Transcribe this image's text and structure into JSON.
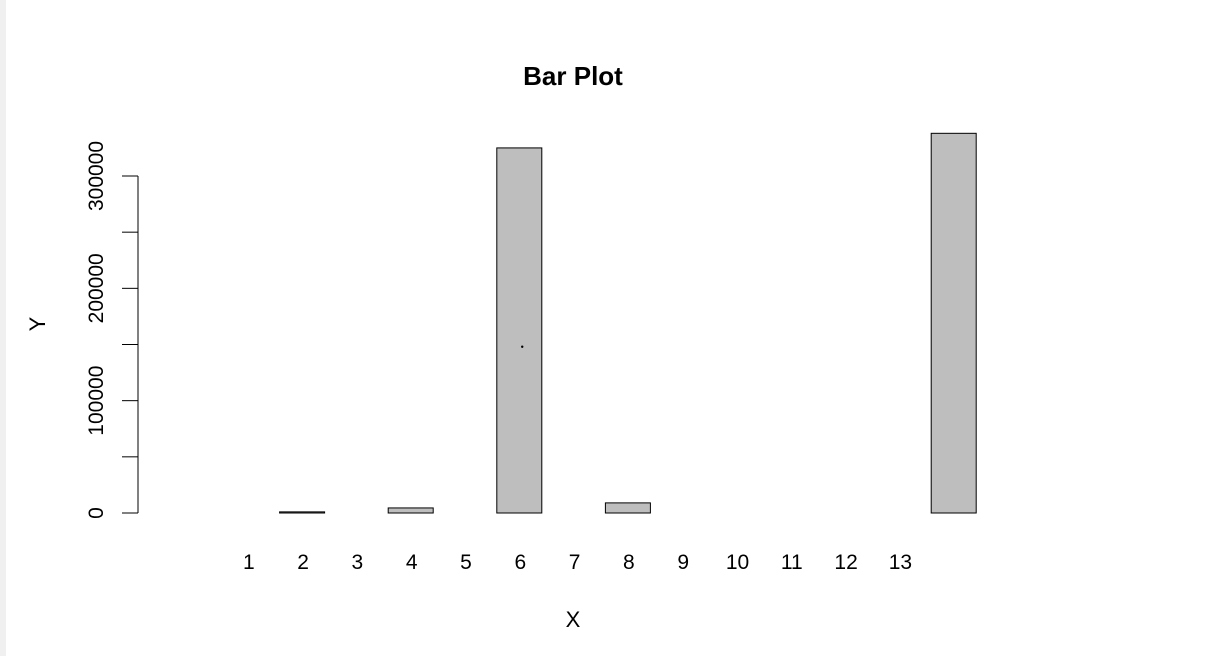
{
  "chart_data": {
    "type": "bar",
    "title": "Bar Plot",
    "xlabel": "X",
    "ylabel": "Y",
    "bar_fill": "#bebebe",
    "bar_stroke": "#000000",
    "grid": false,
    "legend": "none",
    "ylim": [
      0,
      300000
    ],
    "y_ticks": [
      0,
      100000,
      200000,
      300000
    ],
    "y_tick_labels": [
      "0",
      "100000",
      "200000",
      "300000"
    ],
    "bar_labels": [
      "",
      "1",
      "2",
      "3",
      "4",
      "5",
      "6",
      "7",
      "8",
      "9",
      "10",
      "11",
      "12",
      "13",
      ""
    ],
    "values": [
      0,
      0,
      1000,
      0,
      4500,
      0,
      325000,
      0,
      9000,
      0,
      0,
      0,
      0,
      0,
      338000
    ],
    "annotations": [
      {
        "type": "point",
        "x_bar_index": 6.1,
        "y": 148000
      }
    ]
  }
}
